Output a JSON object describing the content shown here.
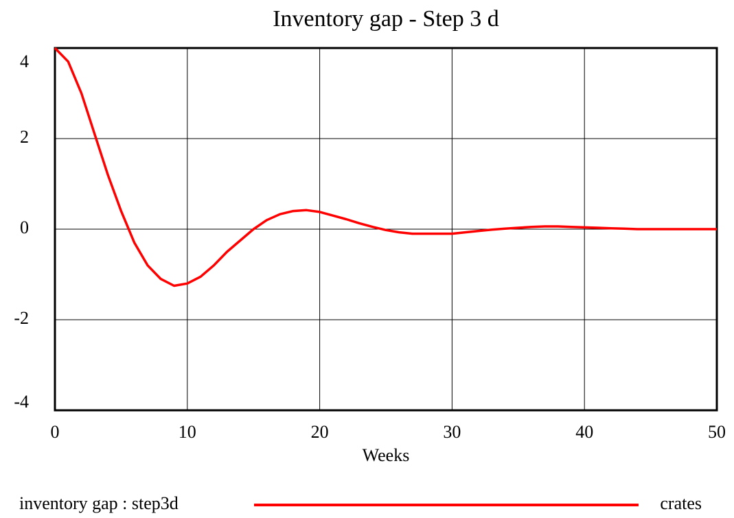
{
  "chart_data": {
    "type": "line",
    "title": "Inventory gap - Step 3 d",
    "x_label": "Weeks",
    "x": [
      0,
      1,
      2,
      3,
      4,
      5,
      6,
      7,
      8,
      9,
      10,
      11,
      12,
      13,
      14,
      15,
      16,
      17,
      18,
      19,
      20,
      21,
      22,
      23,
      24,
      25,
      26,
      27,
      28,
      29,
      30,
      31,
      32,
      33,
      34,
      35,
      36,
      37,
      38,
      39,
      40,
      41,
      42,
      43,
      44,
      45,
      46,
      47,
      48,
      49,
      50
    ],
    "series": [
      {
        "name": "inventory gap : step3d",
        "unit": "crates",
        "color": "#ff0000",
        "values": [
          4.0,
          3.7,
          3.0,
          2.1,
          1.2,
          0.4,
          -0.3,
          -0.8,
          -1.1,
          -1.25,
          -1.2,
          -1.05,
          -0.8,
          -0.5,
          -0.25,
          0.0,
          0.2,
          0.33,
          0.4,
          0.42,
          0.38,
          0.3,
          0.22,
          0.13,
          0.05,
          -0.02,
          -0.07,
          -0.1,
          -0.1,
          -0.1,
          -0.1,
          -0.07,
          -0.04,
          -0.01,
          0.01,
          0.03,
          0.05,
          0.06,
          0.06,
          0.05,
          0.04,
          0.03,
          0.02,
          0.01,
          0,
          0,
          0,
          0,
          0,
          0,
          0
        ]
      }
    ],
    "xlim": [
      0,
      50
    ],
    "xticks": [
      0,
      10,
      20,
      30,
      40,
      50
    ],
    "ylim": [
      -4,
      4
    ],
    "yticks": [
      -4,
      -2,
      0,
      2,
      4
    ],
    "grid": true
  }
}
